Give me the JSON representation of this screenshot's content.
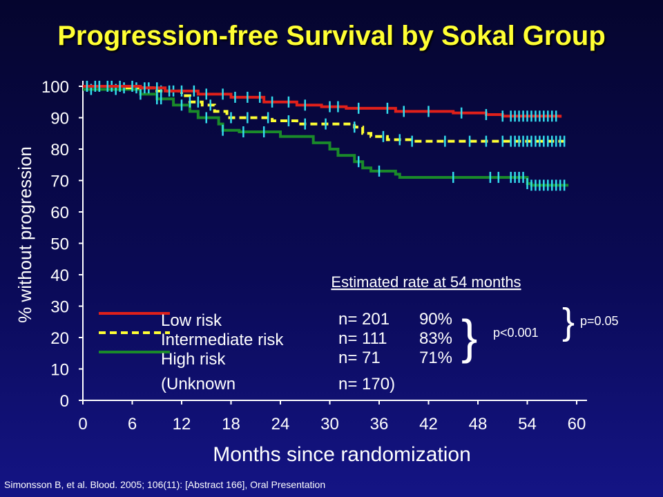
{
  "title": "Progression-free Survival by Sokal Group",
  "citation": "Simonsson B, et al. Blood. 2005; 106(11): [Abstract 166], Oral Presentation",
  "chart_data": {
    "type": "line",
    "xlabel": "Months since randomization",
    "ylabel": "% without progression",
    "xlim": [
      0,
      60
    ],
    "ylim": [
      0,
      100
    ],
    "xticks": [
      "0",
      "6",
      "12",
      "18",
      "24",
      "30",
      "36",
      "42",
      "48",
      "54",
      "60"
    ],
    "yticks": [
      "0",
      "10",
      "20",
      "30",
      "40",
      "50",
      "60",
      "70",
      "80",
      "90",
      "100"
    ],
    "grid": false,
    "legend_position": "bottom-left",
    "series": [
      {
        "name": "Low risk",
        "color": "#e0201a",
        "style": "solid",
        "n": "n= 201",
        "rate": "90%",
        "points": [
          [
            0,
            100
          ],
          [
            7,
            99.5
          ],
          [
            10,
            98.5
          ],
          [
            14,
            97.5
          ],
          [
            18,
            96.5
          ],
          [
            22,
            95
          ],
          [
            26,
            94
          ],
          [
            29,
            93.5
          ],
          [
            32,
            93
          ],
          [
            38,
            92
          ],
          [
            45,
            91.5
          ],
          [
            49,
            91
          ],
          [
            51,
            90.5
          ],
          [
            58,
            90
          ]
        ],
        "censors": [
          0.5,
          1.5,
          2,
          3,
          4.5,
          6,
          7.5,
          9,
          10.5,
          12,
          13.5,
          15,
          17,
          18.5,
          20,
          21.5,
          23,
          25,
          27,
          30,
          31,
          33.5,
          37,
          39,
          42,
          46,
          49,
          51,
          52,
          52.5,
          53,
          53.5,
          54,
          54.5,
          55,
          55.5,
          56,
          56.5,
          57,
          57.5
        ]
      },
      {
        "name": "Intermediate risk",
        "color": "#ffff33",
        "style": "dashed",
        "n": "n= 111",
        "rate": "83%",
        "points": [
          [
            0,
            100
          ],
          [
            5,
            99.5
          ],
          [
            9,
            98.5
          ],
          [
            12,
            97
          ],
          [
            13,
            95
          ],
          [
            14.5,
            94
          ],
          [
            16,
            92
          ],
          [
            17.5,
            90
          ],
          [
            23,
            89
          ],
          [
            26,
            88
          ],
          [
            33,
            87
          ],
          [
            34,
            85
          ],
          [
            35,
            84
          ],
          [
            37,
            83
          ],
          [
            40,
            82.5
          ],
          [
            59,
            82.5
          ]
        ],
        "censors": [
          0.5,
          2,
          3.5,
          5,
          6.5,
          8,
          9.5,
          11,
          13,
          14,
          15.5,
          18,
          20,
          22.5,
          25,
          27,
          29.5,
          33,
          36.5,
          38.5,
          40,
          44,
          47,
          49,
          51,
          52,
          52.5,
          53,
          53.5,
          54,
          54.5,
          55,
          55.5,
          56,
          56.5,
          57,
          57.5,
          58,
          58.5
        ]
      },
      {
        "name": "High risk",
        "color": "#1a8a2a",
        "style": "solid",
        "n": "n=   71",
        "rate": "71%",
        "points": [
          [
            0,
            99
          ],
          [
            7,
            97.5
          ],
          [
            9,
            96
          ],
          [
            11,
            94
          ],
          [
            13,
            92
          ],
          [
            14,
            90
          ],
          [
            16.5,
            88
          ],
          [
            17,
            86
          ],
          [
            19,
            85.5
          ],
          [
            24,
            84
          ],
          [
            28,
            82
          ],
          [
            30,
            80
          ],
          [
            31,
            78
          ],
          [
            33,
            76
          ],
          [
            34,
            74
          ],
          [
            35,
            73
          ],
          [
            38,
            72
          ],
          [
            38.5,
            71
          ],
          [
            53.5,
            71
          ],
          [
            54,
            69
          ],
          [
            54.5,
            68.5
          ],
          [
            59,
            68.5
          ]
        ],
        "censors": [
          1,
          4,
          7,
          9,
          9.5,
          12,
          15,
          17,
          19.5,
          22,
          33.5,
          36,
          45,
          49.5,
          50.5,
          52,
          52.5,
          53,
          53.5,
          54,
          54.5,
          55,
          55.5,
          56,
          56.5,
          57,
          57.5,
          58,
          58.5
        ]
      }
    ],
    "unknown_label": "(Unknown",
    "unknown_n": "n= 170)",
    "estimated_label": "Estimated rate at 54 months",
    "p_inner": "p<0.001",
    "p_outer": "p=0.05"
  }
}
